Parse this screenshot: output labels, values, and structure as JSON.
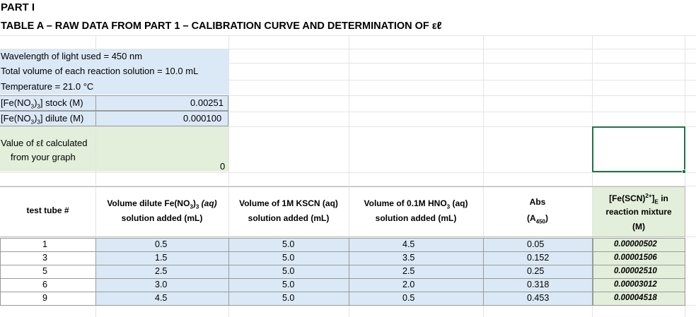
{
  "part_title": "PART I",
  "table_title": "TABLE A  – RAW DATA FROM PART 1 – CALIBRATION CURVE AND DETERMINATION OF εℓ",
  "info": {
    "wavelength": "Wavelength of light used = 450 nm",
    "volume": "Total volume of each reaction solution = 10.0 mL",
    "temperature": "Temperature = 21.0 °C",
    "stock_label_pre": "[Fe(NO",
    "stock_label_sub": "3",
    "stock_label_mid": ")",
    "stock_label_sub2": "3",
    "stock_label_post": "] stock (M)",
    "stock_value": "0.00251",
    "dilute_label_post": "] dilute (M)",
    "dilute_value": "0.000100",
    "el_label_1": "Value of  εℓ calculated",
    "el_label_2": "from your graph",
    "el_value": "0"
  },
  "headers": {
    "test_tube": "test tube #",
    "vol_fe_1a": "Volume dilute Fe(NO",
    "vol_fe_1b": "3",
    "vol_fe_1c": ")",
    "vol_fe_1d": "3",
    "vol_fe_1e": " (aq)",
    "vol_fe_2": "solution added (mL)",
    "vol_kscn_1": "Volume of 1M KSCN (aq)",
    "vol_kscn_2": "solution added (mL)",
    "vol_hno3_1a": "Volume of 0.1M HNO",
    "vol_hno3_1b": "3",
    "vol_hno3_1c": " (aq)",
    "vol_hno3_2": "solution added (mL)",
    "abs_1": "Abs",
    "abs_2a": "(A",
    "abs_2b": "450",
    "abs_2c": ")",
    "fescn_1a": "[Fe(SCN)",
    "fescn_1b": "2+",
    "fescn_1c": "]",
    "fescn_1d": "E",
    "fescn_1e": " in",
    "fescn_2": "reaction mixture",
    "fescn_3": "(M)"
  },
  "rows": [
    {
      "tube": "1",
      "fe": "0.5",
      "kscn": "5.0",
      "hno3": "4.5",
      "abs": "0.05",
      "conc": "0.00000502"
    },
    {
      "tube": "3",
      "fe": "1.5",
      "kscn": "5.0",
      "hno3": "3.5",
      "abs": "0.152",
      "conc": "0.00001506"
    },
    {
      "tube": "5",
      "fe": "2.5",
      "kscn": "5.0",
      "hno3": "2.5",
      "abs": "0.25",
      "conc": "0.00002510"
    },
    {
      "tube": "6",
      "fe": "3.0",
      "kscn": "5.0",
      "hno3": "2.0",
      "abs": "0.318",
      "conc": "0.00003012"
    },
    {
      "tube": "9",
      "fe": "4.5",
      "kscn": "5.0",
      "hno3": "0.5",
      "abs": "0.453",
      "conc": "0.00004518"
    }
  ]
}
